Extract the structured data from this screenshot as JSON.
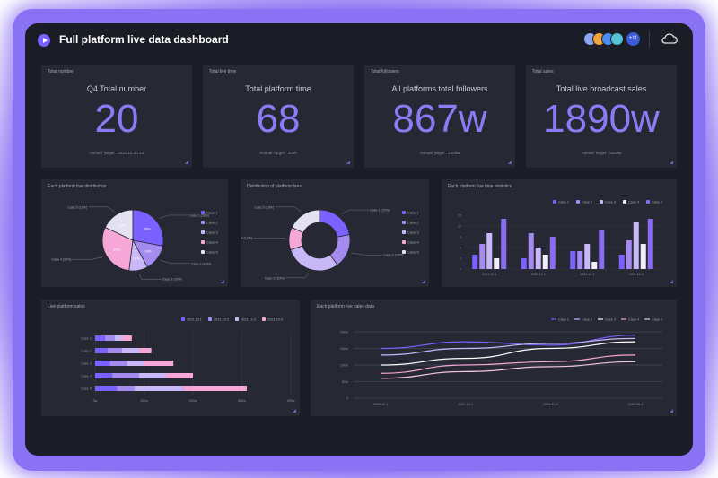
{
  "header": {
    "title": "Full platform live data dashboard",
    "avatar_count": "+11",
    "avatar_colors": [
      "#8aa6f5",
      "#f2a33c",
      "#4a8ef0",
      "#56c2d6"
    ]
  },
  "kpis": [
    {
      "label": "Total number",
      "subtitle": "Q4 Total number",
      "value": "20",
      "target": "Annual Target : 2021.10.30-12"
    },
    {
      "label": "Total live time",
      "subtitle": "Total platform time",
      "value": "68",
      "target": "Annual Target : 200h"
    },
    {
      "label": "Total followers",
      "subtitle": "All platforms total followers",
      "value": "867w",
      "target": "Annual Target : 1000w"
    },
    {
      "label": "Total sales",
      "subtitle": "Total live broadcast sales",
      "value": "1890w",
      "target": "Annual Target : 3000w"
    }
  ],
  "colors": {
    "series": [
      "#7b61ff",
      "#a58bf0",
      "#c9b8f7",
      "#f7a6d8",
      "#e4e1f3"
    ]
  },
  "chart_data": [
    {
      "type": "pie",
      "title": "Each platform live distribution",
      "categories": [
        "Case 1",
        "Case 2",
        "Case 3",
        "Case 4",
        "Case 5"
      ],
      "values": [
        28,
        14,
        10,
        30,
        18
      ],
      "slice_labels": [
        "Case 1 (28%)",
        "Case 2 (14%)",
        "Case 3 (10%)",
        "Case 4 (30%)",
        "Case 5 (18%)"
      ],
      "legend": [
        "Case 1",
        "Case 2",
        "Case 3",
        "Case 4",
        "Case 5"
      ]
    },
    {
      "type": "pie",
      "title": "Distribution of platform fans",
      "categories": [
        "Case 1",
        "Case 2",
        "Case 3",
        "Case 4",
        "Case 5"
      ],
      "values": [
        22,
        18,
        30,
        12,
        18
      ],
      "slice_labels": [
        "Case 1 (22%)",
        "Case 2 (18%)",
        "Case 3 (30%)",
        "Case 4 (12%)",
        "Case 5 (18%)"
      ],
      "legend": [
        "Case 1",
        "Case 2",
        "Case 3",
        "Case 4",
        "Case 5"
      ]
    },
    {
      "type": "bar",
      "title": "Each platform live time statistics",
      "categories": [
        "2021.10.1",
        "2021.10.2",
        "2021.10.3",
        "2021.10.4"
      ],
      "y_ticks": [
        "0",
        "3",
        "6",
        "9",
        "12",
        "15"
      ],
      "ylim": [
        0,
        15
      ],
      "series": [
        {
          "name": "Case 1",
          "values": [
            4,
            3,
            5,
            4
          ]
        },
        {
          "name": "Case 2",
          "values": [
            7,
            10,
            5,
            8
          ]
        },
        {
          "name": "Case 3",
          "values": [
            10,
            6,
            7,
            13
          ]
        },
        {
          "name": "Case 4",
          "values": [
            3,
            4,
            2,
            7
          ]
        },
        {
          "name": "Case 5",
          "values": [
            14,
            9,
            11,
            14
          ]
        }
      ]
    },
    {
      "type": "bar",
      "orientation": "horizontal-stacked",
      "title": "Live platform sales",
      "categories": [
        "Case 1",
        "Case 2",
        "Case 3",
        "Case 4",
        "Case 5"
      ],
      "x_ticks": [
        "0w",
        "100w",
        "200w",
        "300w",
        "400w"
      ],
      "xlim": [
        0,
        400
      ],
      "series": [
        {
          "name": "2021.10.1",
          "values": [
            20,
            25,
            30,
            35,
            45
          ]
        },
        {
          "name": "2021.10.2",
          "values": [
            20,
            30,
            35,
            55,
            35
          ]
        },
        {
          "name": "2021.10.3",
          "values": [
            15,
            35,
            35,
            55,
            100
          ]
        },
        {
          "name": "2021.10.4",
          "values": [
            20,
            25,
            60,
            55,
            130
          ]
        }
      ]
    },
    {
      "type": "line",
      "title": "Each platform live sales data",
      "x": [
        "2021.10.1",
        "2021.10.2",
        "2021.10.3",
        "2021.10.4"
      ],
      "y_ticks": [
        "0",
        "50w",
        "100w",
        "150w",
        "200w"
      ],
      "ylim": [
        0,
        200
      ],
      "series": [
        {
          "name": "Case 1",
          "values": [
            150,
            170,
            160,
            190
          ]
        },
        {
          "name": "Case 2",
          "values": [
            130,
            150,
            165,
            180
          ]
        },
        {
          "name": "Case 3",
          "values": [
            100,
            120,
            150,
            170
          ]
        },
        {
          "name": "Case 4",
          "values": [
            75,
            100,
            110,
            130
          ]
        },
        {
          "name": "Case 5",
          "values": [
            60,
            80,
            95,
            110
          ]
        }
      ]
    }
  ]
}
